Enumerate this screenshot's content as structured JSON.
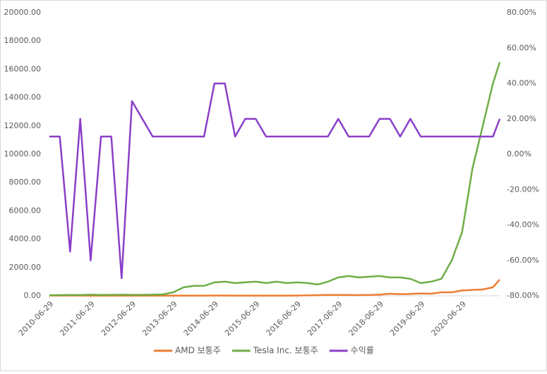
{
  "chart_data": {
    "type": "line",
    "x": [
      "2010-06-29",
      "2010-09-29",
      "2010-12-29",
      "2011-03-29",
      "2011-06-29",
      "2011-09-29",
      "2011-12-29",
      "2012-03-29",
      "2012-06-29",
      "2012-09-29",
      "2012-12-29",
      "2013-03-29",
      "2013-06-29",
      "2013-09-29",
      "2013-12-29",
      "2014-03-29",
      "2014-06-29",
      "2014-09-29",
      "2014-12-29",
      "2015-03-29",
      "2015-06-29",
      "2015-09-29",
      "2015-12-29",
      "2016-03-29",
      "2016-06-29",
      "2016-09-29",
      "2016-12-29",
      "2017-03-29",
      "2017-06-29",
      "2017-09-29",
      "2017-12-29",
      "2018-03-29",
      "2018-06-29",
      "2018-09-29",
      "2018-12-29",
      "2019-03-29",
      "2019-06-29",
      "2019-09-29",
      "2019-12-29",
      "2020-03-29",
      "2020-06-29",
      "2020-09-29",
      "2020-12-29",
      "2021-03-29",
      "2021-05-28"
    ],
    "xlim": [
      "2010-06-29",
      "2021-05-28"
    ],
    "xticks": [
      "2010-06-29",
      "2011-06-29",
      "2012-06-29",
      "2013-06-29",
      "2014-06-29",
      "2015-06-29",
      "2016-06-29",
      "2017-06-29",
      "2018-06-29",
      "2019-06-29",
      "2020-06-29"
    ],
    "ylim": [
      0,
      20000
    ],
    "yticks": [
      {
        "value": 0,
        "label": "0.00"
      },
      {
        "value": 2000,
        "label": "2000.00"
      },
      {
        "value": 4000,
        "label": "4000.00"
      },
      {
        "value": 6000,
        "label": "6000.00"
      },
      {
        "value": 8000,
        "label": "8000.00"
      },
      {
        "value": 10000,
        "label": "10000.00"
      },
      {
        "value": 12000,
        "label": "12000.00"
      },
      {
        "value": 14000,
        "label": "14000.00"
      },
      {
        "value": 16000,
        "label": "16000.00"
      },
      {
        "value": 18000,
        "label": "18000.00"
      },
      {
        "value": 20000,
        "label": "20000.00"
      }
    ],
    "y2lim": [
      -80,
      80
    ],
    "y2ticks": [
      {
        "value": -80,
        "label": "-80.00%"
      },
      {
        "value": -60,
        "label": "-60.00%"
      },
      {
        "value": -40,
        "label": "-40.00%"
      },
      {
        "value": -20,
        "label": "-20.00%"
      },
      {
        "value": 0,
        "label": "0.00%"
      },
      {
        "value": 20,
        "label": "20.00%"
      },
      {
        "value": 40,
        "label": "40.00%"
      },
      {
        "value": 60,
        "label": "60.00%"
      },
      {
        "value": 80,
        "label": "80.00%"
      }
    ],
    "legend": "bottom",
    "series": [
      {
        "name": "AMD 보통주",
        "color": "#ed7d31",
        "values": [
          20,
          20,
          18,
          18,
          15,
          12,
          12,
          15,
          12,
          10,
          8,
          10,
          12,
          15,
          15,
          15,
          18,
          20,
          15,
          12,
          10,
          10,
          10,
          12,
          20,
          30,
          45,
          60,
          60,
          55,
          50,
          60,
          80,
          150,
          120,
          130,
          170,
          150,
          250,
          250,
          380,
          420,
          450,
          600,
          1150
        ]
      },
      {
        "name": "Tesla Inc. 보통주",
        "color": "#70ad47",
        "values": [
          40,
          50,
          60,
          55,
          80,
          60,
          70,
          80,
          70,
          70,
          80,
          100,
          250,
          600,
          700,
          700,
          950,
          1000,
          900,
          950,
          1000,
          900,
          1000,
          900,
          950,
          900,
          800,
          1000,
          1300,
          1400,
          1300,
          1350,
          1400,
          1300,
          1300,
          1200,
          900,
          1000,
          1200,
          2500,
          4500,
          9000,
          12000,
          15000,
          16500
        ]
      },
      {
        "name": "수익률",
        "color": "#8b3fc8",
        "axis": "y2",
        "values": [
          10,
          10,
          -55,
          20,
          -60,
          10,
          10,
          -70,
          30,
          20,
          10,
          10,
          10,
          10,
          10,
          10,
          40,
          40,
          10,
          20,
          20,
          10,
          10,
          10,
          10,
          10,
          10,
          10,
          20,
          10,
          10,
          10,
          20,
          20,
          10,
          20,
          10,
          10,
          10,
          10,
          10,
          10,
          10,
          10,
          20
        ]
      }
    ]
  }
}
